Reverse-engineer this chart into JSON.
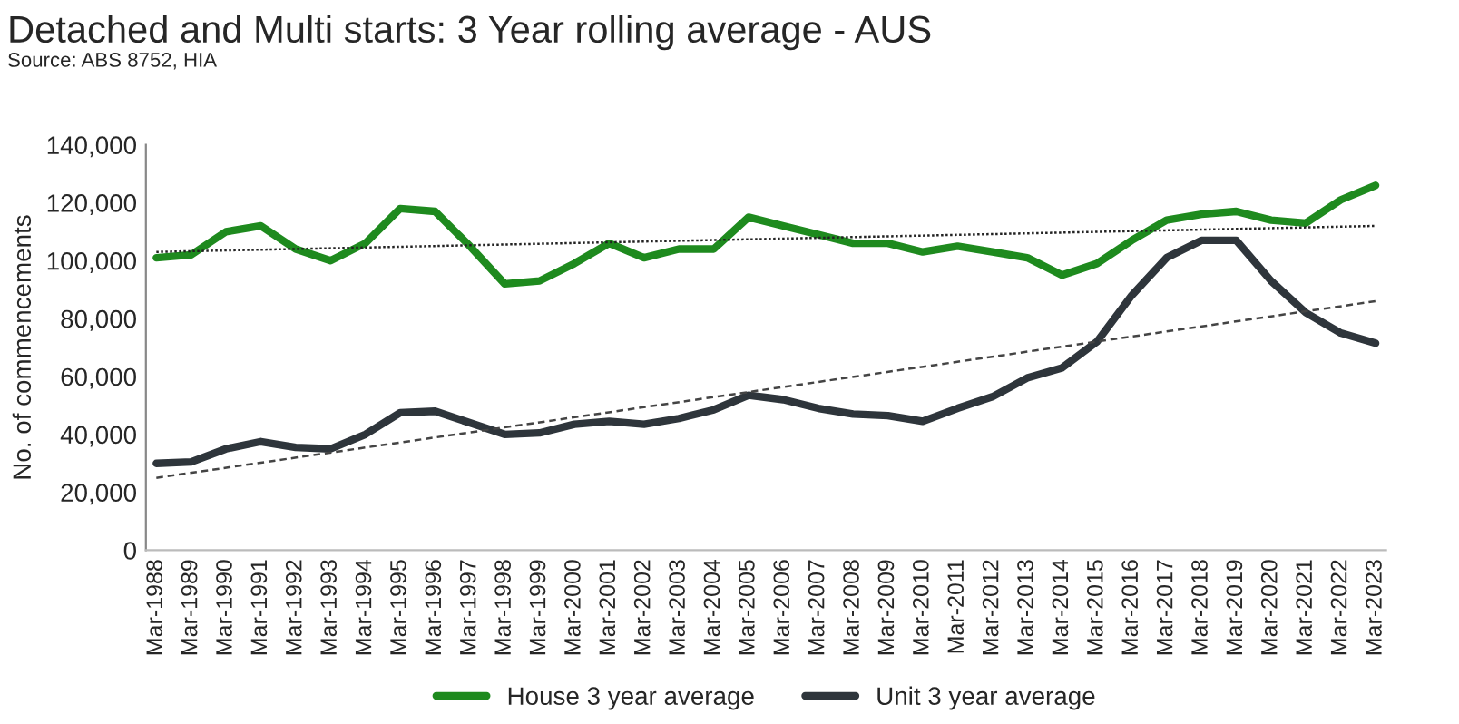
{
  "chart_data": {
    "type": "line",
    "title": "Detached and Multi starts: 3 Year rolling average - AUS",
    "annotations": [
      "Source: ABS 8752, HIA"
    ],
    "ylabel": "No. of commencements",
    "categories": [
      "Mar-1988",
      "Mar-1989",
      "Mar-1990",
      "Mar-1991",
      "Mar-1992",
      "Mar-1993",
      "Mar-1994",
      "Mar-1995",
      "Mar-1996",
      "Mar-1997",
      "Mar-1998",
      "Mar-1999",
      "Mar-2000",
      "Mar-2001",
      "Mar-2002",
      "Mar-2003",
      "Mar-2004",
      "Mar-2005",
      "Mar-2006",
      "Mar-2007",
      "Mar-2008",
      "Mar-2009",
      "Mar-2010",
      "Mar-2011",
      "Mar-2012",
      "Mar-2013",
      "Mar-2014",
      "Mar-2015",
      "Mar-2016",
      "Mar-2017",
      "Mar-2018",
      "Mar-2019",
      "Mar-2020",
      "Mar-2021",
      "Mar-2022",
      "Mar-2023"
    ],
    "series": [
      {
        "name": "House 3 year average",
        "color": "#1e8a1e",
        "values": [
          101000,
          102000,
          110000,
          112000,
          104000,
          100000,
          106000,
          118000,
          117000,
          105000,
          92000,
          93000,
          99000,
          106000,
          101000,
          104000,
          104000,
          115000,
          112000,
          109000,
          106000,
          106000,
          103000,
          105000,
          103000,
          101000,
          95000,
          99000,
          107000,
          114000,
          116000,
          117000,
          114000,
          113000,
          121000,
          126000
        ]
      },
      {
        "name": "Unit 3 year average",
        "color": "#2e353b",
        "values": [
          30000,
          30500,
          35000,
          37500,
          35500,
          35000,
          40000,
          47500,
          48000,
          44000,
          40000,
          40500,
          43500,
          44500,
          43500,
          45500,
          48500,
          53500,
          52000,
          49000,
          47000,
          46500,
          44500,
          49000,
          53000,
          59500,
          63000,
          72000,
          88000,
          101000,
          107000,
          107000,
          93000,
          82000,
          75000,
          71500
        ]
      },
      {
        "type": "line",
        "color": "#222222",
        "line_style": "dotted",
        "x": [
          "Mar-1988",
          "Mar-2023"
        ],
        "values": [
          103000,
          112000
        ]
      },
      {
        "type": "line",
        "color": "#444444",
        "line_style": "dashed",
        "x": [
          "Mar-1988",
          "Mar-2023"
        ],
        "values": [
          25000,
          86000
        ]
      }
    ],
    "ylim": [
      0,
      140000
    ],
    "yticks": [
      0,
      {
        "value": 20000,
        "label": "20,000"
      },
      {
        "value": 40000,
        "label": "40,000"
      },
      {
        "value": 60000,
        "label": "60,000"
      },
      {
        "value": 80000,
        "label": "80,000"
      },
      {
        "value": 100000,
        "label": "100,000"
      },
      {
        "value": 120000,
        "label": "120,000"
      },
      {
        "value": 140000,
        "label": "140,000"
      }
    ],
    "grid": false,
    "legend": "bottom",
    "marker": "none",
    "line_style": "solid"
  }
}
